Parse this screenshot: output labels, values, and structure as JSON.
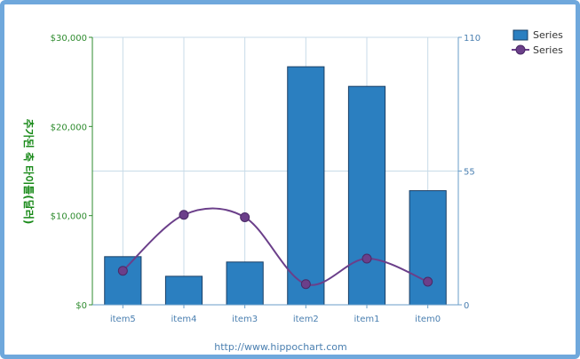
{
  "chart_data": {
    "type": "bar",
    "categories": [
      "item5",
      "item4",
      "item3",
      "item2",
      "item1",
      "item0"
    ],
    "series": [
      {
        "name": "Series",
        "type": "bar",
        "axis": "left",
        "values": [
          5400,
          3200,
          4800,
          26700,
          24500,
          12800
        ]
      },
      {
        "name": "Series",
        "type": "line",
        "axis": "right",
        "smooth": true,
        "values": [
          14,
          37,
          36,
          8.5,
          19,
          9.5
        ]
      }
    ],
    "ylabel": "추가된 축 타이틀(달러)",
    "y_left": {
      "min": 0,
      "max": 30000,
      "ticks": [
        "$0",
        "$10,000",
        "$20,000",
        "$30,000"
      ],
      "tick_values": [
        0,
        10000,
        20000,
        30000
      ]
    },
    "y_right": {
      "min": 0,
      "max": 110,
      "ticks": [
        "0",
        "55",
        "110"
      ],
      "tick_values": [
        0,
        55,
        110
      ]
    },
    "grid": true,
    "legend": "top-right",
    "colors": {
      "bar": "#2b7fc0",
      "bar_stroke": "#1a3f66",
      "line": "#6b3f8a",
      "marker": "#6b3f8a",
      "grid": "#c8dbe8",
      "left_axis": "#2e8b2e",
      "right_axis": "#6a9ec8"
    }
  },
  "footer": "http://www.hippochart.com"
}
